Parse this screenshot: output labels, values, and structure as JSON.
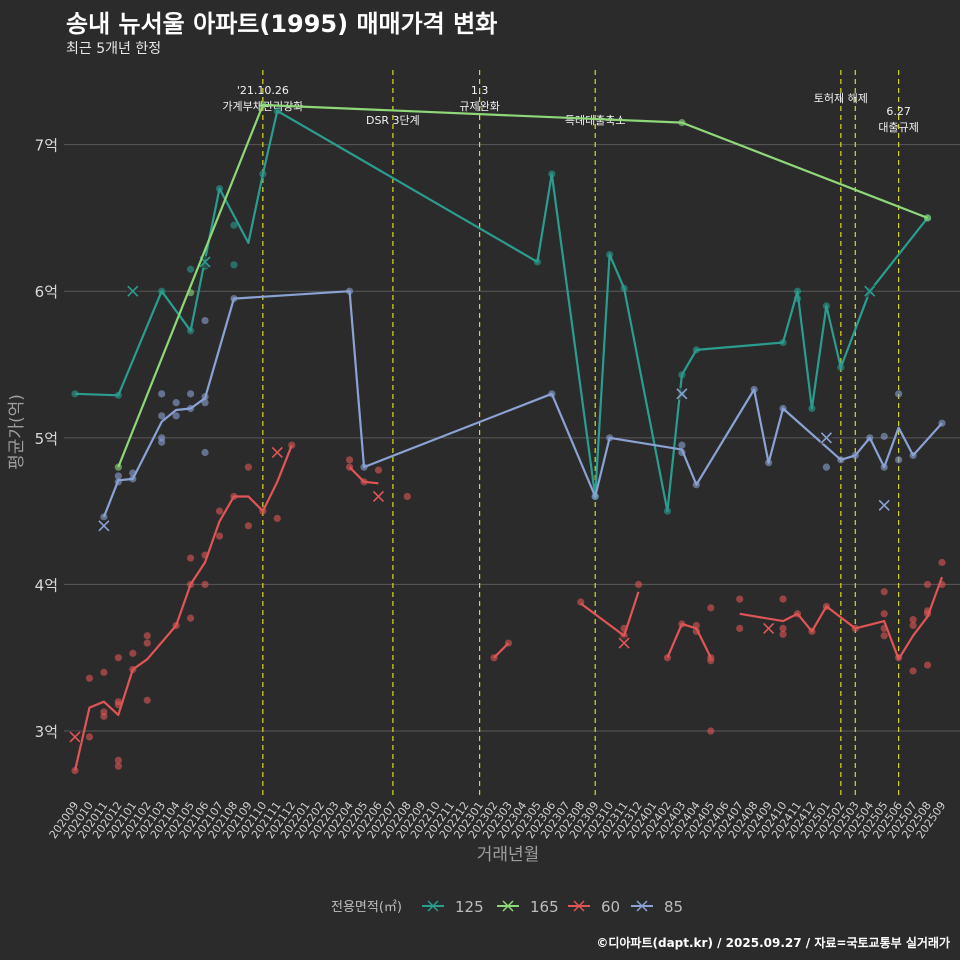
{
  "chart_data": {
    "type": "line",
    "title": "송내 뉴서울 아파트(1995) 매매가격 변화",
    "subtitle": "최근 5개년 한정",
    "xlabel": "거래년월",
    "ylabel": "평균가(억)",
    "ylim": [
      2.55,
      7.55
    ],
    "yticks": [
      3,
      4,
      5,
      6,
      7
    ],
    "ytick_labels": [
      "3억",
      "4억",
      "5억",
      "6억",
      "7억"
    ],
    "categories": [
      "202009",
      "202010",
      "202011",
      "202012",
      "202101",
      "202102",
      "202103",
      "202104",
      "202105",
      "202106",
      "202107",
      "202108",
      "202109",
      "202110",
      "202111",
      "202112",
      "202201",
      "202202",
      "202203",
      "202204",
      "202205",
      "202206",
      "202207",
      "202208",
      "202209",
      "202210",
      "202211",
      "202212",
      "202301",
      "202302",
      "202303",
      "202304",
      "202305",
      "202306",
      "202307",
      "202308",
      "202309",
      "202310",
      "202311",
      "202312",
      "202401",
      "202402",
      "202403",
      "202404",
      "202405",
      "202406",
      "202407",
      "202408",
      "202409",
      "202410",
      "202411",
      "202412",
      "202501",
      "202502",
      "202503",
      "202504",
      "202505",
      "202506",
      "202507",
      "202508",
      "202509"
    ],
    "legend_title": "전용면적(㎡)",
    "legend_position": "bottom",
    "series": [
      {
        "name": "125",
        "color": "#2a9d8f",
        "line": [
          [
            "202009",
            5.3
          ],
          [
            "202012",
            5.29
          ],
          [
            "202103",
            6.0
          ],
          [
            "202105",
            5.73
          ],
          [
            "202107",
            6.7
          ],
          [
            "202109",
            6.33
          ],
          [
            "202110",
            6.8
          ],
          [
            "202111",
            7.23
          ],
          [
            "202305",
            6.2
          ],
          [
            "202306",
            6.8
          ],
          [
            "202309",
            4.6
          ],
          [
            "202310",
            6.25
          ],
          [
            "202311",
            6.02
          ],
          [
            "202402",
            4.5
          ],
          [
            "202403",
            5.43
          ],
          [
            "202404",
            5.6
          ],
          [
            "202410",
            5.65
          ],
          [
            "202411",
            6.0
          ],
          [
            "202412",
            5.2
          ],
          [
            "202501",
            5.9
          ],
          [
            "202502",
            5.48
          ],
          [
            "202504",
            6.0
          ],
          [
            "202508",
            6.5
          ]
        ],
        "points": [
          [
            "202009",
            5.3
          ],
          [
            "202012",
            5.29
          ],
          [
            "202103",
            6.0
          ],
          [
            "202105",
            6.15
          ],
          [
            "202105",
            5.73
          ],
          [
            "202106",
            6.17
          ],
          [
            "202107",
            6.7
          ],
          [
            "202108",
            6.45
          ],
          [
            "202108",
            6.18
          ],
          [
            "202110",
            6.8
          ],
          [
            "202111",
            7.23
          ],
          [
            "202305",
            6.2
          ],
          [
            "202306",
            6.8
          ],
          [
            "202309",
            4.6
          ],
          [
            "202310",
            6.25
          ],
          [
            "202311",
            6.02
          ],
          [
            "202402",
            4.5
          ],
          [
            "202403",
            5.43
          ],
          [
            "202403",
            5.3
          ],
          [
            "202404",
            5.6
          ],
          [
            "202410",
            5.65
          ],
          [
            "202411",
            6.0
          ],
          [
            "202411",
            5.95
          ],
          [
            "202412",
            5.2
          ],
          [
            "202501",
            5.9
          ],
          [
            "202502",
            5.48
          ],
          [
            "202504",
            6.0
          ],
          [
            "202508",
            6.5
          ]
        ],
        "crosses": [
          [
            "202101",
            6.0
          ],
          [
            "202106",
            6.2
          ],
          [
            "202504",
            6.0
          ]
        ]
      },
      {
        "name": "165",
        "color": "#8fd879",
        "line": [
          [
            "202012",
            4.8
          ],
          [
            "202110",
            7.27
          ],
          [
            "202403",
            7.15
          ],
          [
            "202508",
            6.5
          ]
        ],
        "points": [
          [
            "202012",
            4.8
          ],
          [
            "202105",
            5.99
          ],
          [
            "202110",
            7.27
          ],
          [
            "202403",
            7.15
          ],
          [
            "202508",
            6.5
          ]
        ],
        "crosses": []
      },
      {
        "name": "60",
        "color": "#e05555",
        "line": [
          [
            "202009",
            2.73
          ],
          [
            "202010",
            3.16
          ],
          [
            "202011",
            3.2
          ],
          [
            "202012",
            3.11
          ],
          [
            "202101",
            3.42
          ],
          [
            "202102",
            3.49
          ],
          [
            "202104",
            3.72
          ],
          [
            "202105",
            4.0
          ],
          [
            "202106",
            4.15
          ],
          [
            "202107",
            4.43
          ],
          [
            "202108",
            4.6
          ],
          [
            "202109",
            4.6
          ],
          [
            "202110",
            4.5
          ],
          [
            "202111",
            4.7
          ],
          [
            "202112",
            4.95
          ],
          null,
          [
            "202204",
            4.8
          ],
          [
            "202205",
            4.7
          ],
          [
            "202206",
            4.69
          ],
          null,
          [
            "202302",
            3.5
          ],
          [
            "202303",
            3.6
          ],
          null,
          [
            "202308",
            3.87
          ],
          [
            "202311",
            3.65
          ],
          [
            "202312",
            3.95
          ],
          null,
          [
            "202402",
            3.5
          ],
          [
            "202403",
            3.73
          ],
          [
            "202404",
            3.7
          ],
          [
            "202405",
            3.5
          ],
          null,
          [
            "202407",
            3.8
          ],
          [
            "202410",
            3.75
          ],
          [
            "202411",
            3.8
          ],
          [
            "202412",
            3.68
          ],
          [
            "202501",
            3.85
          ],
          [
            "202503",
            3.7
          ],
          [
            "202505",
            3.75
          ],
          [
            "202506",
            3.49
          ],
          [
            "202507",
            3.65
          ],
          [
            "202508",
            3.78
          ],
          [
            "202509",
            4.05
          ]
        ],
        "points": [
          [
            "202009",
            2.73
          ],
          [
            "202010",
            2.96
          ],
          [
            "202010",
            3.36
          ],
          [
            "202011",
            3.4
          ],
          [
            "202011",
            3.13
          ],
          [
            "202011",
            3.1
          ],
          [
            "202012",
            3.5
          ],
          [
            "202012",
            3.2
          ],
          [
            "202012",
            3.18
          ],
          [
            "202012",
            2.8
          ],
          [
            "202012",
            2.76
          ],
          [
            "202101",
            3.53
          ],
          [
            "202101",
            3.42
          ],
          [
            "202102",
            3.65
          ],
          [
            "202102",
            3.6
          ],
          [
            "202102",
            3.21
          ],
          [
            "202104",
            3.72
          ],
          [
            "202105",
            4.18
          ],
          [
            "202105",
            4.0
          ],
          [
            "202105",
            3.77
          ],
          [
            "202106",
            4.2
          ],
          [
            "202106",
            4.0
          ],
          [
            "202107",
            4.5
          ],
          [
            "202107",
            4.33
          ],
          [
            "202108",
            4.6
          ],
          [
            "202109",
            4.8
          ],
          [
            "202109",
            4.4
          ],
          [
            "202110",
            4.5
          ],
          [
            "202111",
            4.45
          ],
          [
            "202112",
            4.95
          ],
          [
            "202204",
            4.85
          ],
          [
            "202204",
            4.8
          ],
          [
            "202205",
            4.7
          ],
          [
            "202206",
            4.78
          ],
          [
            "202208",
            4.6
          ],
          [
            "202302",
            3.5
          ],
          [
            "202303",
            3.6
          ],
          [
            "202308",
            3.88
          ],
          [
            "202311",
            3.65
          ],
          [
            "202311",
            3.7
          ],
          [
            "202312",
            4.0
          ],
          [
            "202402",
            3.5
          ],
          [
            "202403",
            3.73
          ],
          [
            "202404",
            3.68
          ],
          [
            "202404",
            3.72
          ],
          [
            "202405",
            3.84
          ],
          [
            "202405",
            3.5
          ],
          [
            "202405",
            3.48
          ],
          [
            "202405",
            3.0
          ],
          [
            "202407",
            3.9
          ],
          [
            "202407",
            3.7
          ],
          [
            "202410",
            3.9
          ],
          [
            "202410",
            3.7
          ],
          [
            "202410",
            3.66
          ],
          [
            "202411",
            3.8
          ],
          [
            "202412",
            3.68
          ],
          [
            "202501",
            3.85
          ],
          [
            "202503",
            3.7
          ],
          [
            "202505",
            3.95
          ],
          [
            "202505",
            3.8
          ],
          [
            "202505",
            3.7
          ],
          [
            "202505",
            3.65
          ],
          [
            "202506",
            3.5
          ],
          [
            "202507",
            3.76
          ],
          [
            "202507",
            3.72
          ],
          [
            "202507",
            3.41
          ],
          [
            "202508",
            4.0
          ],
          [
            "202508",
            3.82
          ],
          [
            "202508",
            3.8
          ],
          [
            "202508",
            3.45
          ],
          [
            "202509",
            4.15
          ],
          [
            "202509",
            4.0
          ]
        ],
        "crosses": [
          [
            "202009",
            2.96
          ],
          [
            "202111",
            4.9
          ],
          [
            "202206",
            4.6
          ],
          [
            "202311",
            3.6
          ],
          [
            "202409",
            3.7
          ]
        ]
      },
      {
        "name": "85",
        "color": "#8aa2d4",
        "line": [
          [
            "202011",
            4.46
          ],
          [
            "202012",
            4.71
          ],
          [
            "202101",
            4.72
          ],
          [
            "202103",
            5.11
          ],
          [
            "202104",
            5.19
          ],
          [
            "202105",
            5.2
          ],
          [
            "202106",
            5.27
          ],
          [
            "202108",
            5.95
          ],
          [
            "202204",
            6.0
          ],
          [
            "202205",
            4.8
          ],
          [
            "202306",
            5.3
          ],
          [
            "202309",
            4.6
          ],
          [
            "202310",
            5.0
          ],
          [
            "202403",
            4.92
          ],
          [
            "202404",
            4.68
          ],
          [
            "202408",
            5.33
          ],
          [
            "202409",
            4.83
          ],
          [
            "202410",
            5.2
          ],
          [
            "202502",
            4.85
          ],
          [
            "202503",
            4.88
          ],
          [
            "202504",
            5.0
          ],
          [
            "202505",
            4.8
          ],
          [
            "202506",
            5.07
          ],
          [
            "202507",
            4.88
          ],
          [
            "202509",
            5.1
          ]
        ],
        "points": [
          [
            "202011",
            4.46
          ],
          [
            "202012",
            4.74
          ],
          [
            "202012",
            4.7
          ],
          [
            "202101",
            4.72
          ],
          [
            "202101",
            4.76
          ],
          [
            "202103",
            5.3
          ],
          [
            "202103",
            5.15
          ],
          [
            "202103",
            5.0
          ],
          [
            "202103",
            4.97
          ],
          [
            "202104",
            5.24
          ],
          [
            "202104",
            5.15
          ],
          [
            "202105",
            5.3
          ],
          [
            "202105",
            5.2
          ],
          [
            "202106",
            5.8
          ],
          [
            "202106",
            5.28
          ],
          [
            "202106",
            5.24
          ],
          [
            "202106",
            4.9
          ],
          [
            "202108",
            5.95
          ],
          [
            "202204",
            6.0
          ],
          [
            "202205",
            4.8
          ],
          [
            "202306",
            5.3
          ],
          [
            "202309",
            4.6
          ],
          [
            "202310",
            5.0
          ],
          [
            "202403",
            4.95
          ],
          [
            "202403",
            4.9
          ],
          [
            "202404",
            4.68
          ],
          [
            "202408",
            5.33
          ],
          [
            "202409",
            4.83
          ],
          [
            "202410",
            5.2
          ],
          [
            "202501",
            4.8
          ],
          [
            "202502",
            4.85
          ],
          [
            "202503",
            4.88
          ],
          [
            "202504",
            5.0
          ],
          [
            "202505",
            5.01
          ],
          [
            "202505",
            4.8
          ],
          [
            "202506",
            5.3
          ],
          [
            "202506",
            4.85
          ],
          [
            "202507",
            4.88
          ],
          [
            "202509",
            5.1
          ]
        ],
        "crosses": [
          [
            "202011",
            4.4
          ],
          [
            "202403",
            5.3
          ],
          [
            "202501",
            5.0
          ],
          [
            "202505",
            4.54
          ]
        ]
      }
    ],
    "annotations": [
      {
        "x": "202110",
        "lines": [
          "'21.10.26",
          "가계부채관리강화"
        ],
        "row": 0
      },
      {
        "x": "202207",
        "lines": [
          "DSR 3단계"
        ],
        "row": 2
      },
      {
        "x": "202301",
        "lines": [
          "1.3",
          "규제완화"
        ],
        "row": 0
      },
      {
        "x": "202309",
        "lines": [
          "특례대출축소"
        ],
        "row": 2
      },
      {
        "x": "202502",
        "lines": [
          "토허제 해제"
        ],
        "row": 1
      },
      {
        "x": "202503",
        "lines": [],
        "row": 1
      },
      {
        "x": "202506",
        "lines": [
          "6.27",
          "대출규제"
        ],
        "row": 3
      }
    ]
  },
  "caption": "©디아파트(dapt.kr) / 2025.09.27 / 자료=국토교통부 실거래가"
}
